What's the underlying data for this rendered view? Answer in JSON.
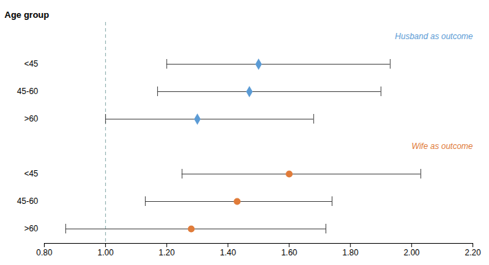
{
  "chart_data": {
    "type": "forest",
    "ylabel": "Age group",
    "xlim": [
      0.8,
      2.2
    ],
    "xticks": [
      {
        "value": 0.8,
        "label": "0.80"
      },
      {
        "value": 1.0,
        "label": "1.00"
      },
      {
        "value": 1.2,
        "label": "1.20"
      },
      {
        "value": 1.4,
        "label": "1.40"
      },
      {
        "value": 1.6,
        "label": "1.60"
      },
      {
        "value": 1.8,
        "label": "1.80"
      },
      {
        "value": 2.0,
        "label": "2.00"
      },
      {
        "value": 2.2,
        "label": "2.20"
      }
    ],
    "reference_line": {
      "x": 1.0,
      "line_style": "dashed"
    },
    "series": [
      {
        "name": "Husband as outcome",
        "color": "#5b9bd5",
        "marker": "diamond",
        "categories": [
          "<45",
          "45-60",
          ">60"
        ],
        "values": [
          1.5,
          1.47,
          1.3
        ],
        "ci_low": [
          1.2,
          1.17,
          1.0
        ],
        "ci_high": [
          1.93,
          1.9,
          1.68
        ]
      },
      {
        "name": "Wife as outcome",
        "color": "#e07b39",
        "marker": "circle",
        "categories": [
          "<45",
          "45-60",
          ">60"
        ],
        "values": [
          1.6,
          1.43,
          1.28
        ],
        "ci_low": [
          1.25,
          1.13,
          0.87
        ],
        "ci_high": [
          2.03,
          1.74,
          1.72
        ]
      }
    ]
  }
}
